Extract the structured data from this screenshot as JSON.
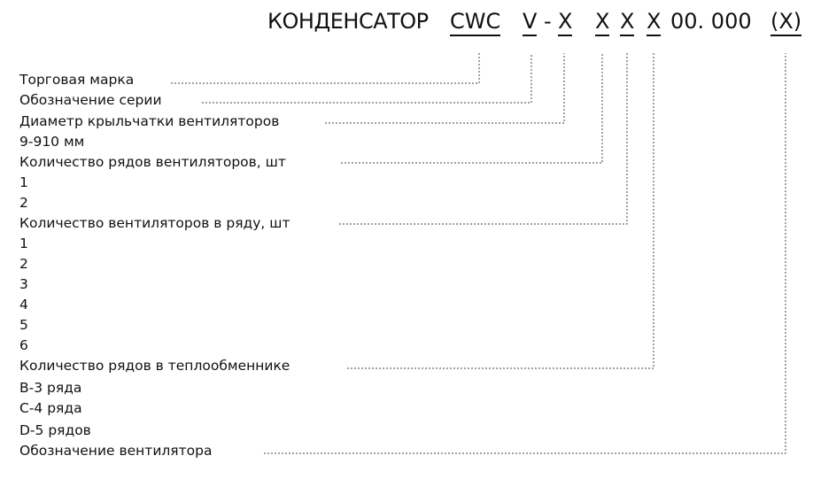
{
  "code": {
    "prefix": "КОНДЕНСАТОР",
    "brand": "CWC",
    "series": "V",
    "dash": "-",
    "diameter": "X",
    "fan_rows": "X",
    "fans_per_row": "X",
    "coil_rows": "X",
    "fixed": "00. 000",
    "fan_designation": "(X)"
  },
  "legend": [
    {
      "text": "Торговая марка",
      "pointer": true
    },
    {
      "text": "Обозначение серии",
      "pointer": true
    },
    {
      "text": "Диаметр крыльчатки вентиляторов",
      "pointer": true
    },
    {
      "text": "9-910 мм",
      "pointer": false
    },
    {
      "text": "Количество рядов вентиляторов, шт",
      "pointer": true
    },
    {
      "text": "1",
      "pointer": false
    },
    {
      "text": "2",
      "pointer": false
    },
    {
      "text": "Количество вентиляторов в ряду, шт",
      "pointer": true
    },
    {
      "text": "1",
      "pointer": false
    },
    {
      "text": "2",
      "pointer": false
    },
    {
      "text": "3",
      "pointer": false
    },
    {
      "text": "4",
      "pointer": false
    },
    {
      "text": "5",
      "pointer": false
    },
    {
      "text": "6",
      "pointer": false
    },
    {
      "text": "Количество рядов в теплообменнике",
      "pointer": true
    },
    {
      "text": "B-3 ряда",
      "pointer": false
    },
    {
      "text": "C-4 ряда",
      "pointer": false
    },
    {
      "text": "D-5 рядов",
      "pointer": false
    },
    {
      "text": "Обозначение вентилятора",
      "pointer": true
    }
  ]
}
